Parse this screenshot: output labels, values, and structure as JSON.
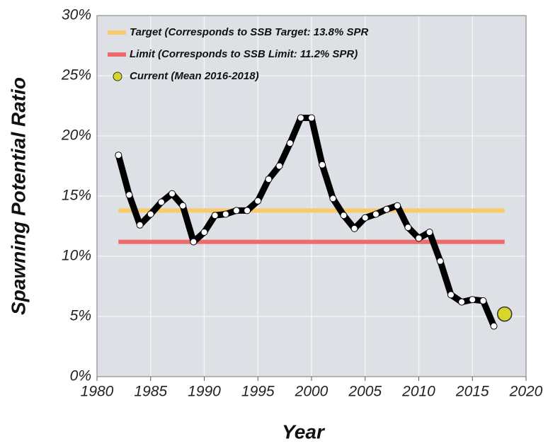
{
  "chart_data": {
    "type": "line",
    "x_label": "Year",
    "y_label": "Spawning Potential Ratio",
    "xlim": [
      1980,
      2020
    ],
    "xticks": [
      1980,
      1985,
      1990,
      1995,
      2000,
      2005,
      2010,
      2015,
      2020
    ],
    "ylim": [
      0,
      30
    ],
    "yticks": [
      {
        "value": 0,
        "label": "0%"
      },
      {
        "value": 5,
        "label": "5%"
      },
      {
        "value": 10,
        "label": "10%"
      },
      {
        "value": 15,
        "label": "15%"
      },
      {
        "value": 20,
        "label": "20%"
      },
      {
        "value": 25,
        "label": "25%"
      },
      {
        "value": 30,
        "label": "30%"
      }
    ],
    "grid": true,
    "legend": "upper left",
    "series": [
      {
        "name": "Target (Corresponds to SSB Target: 13.8% SPR",
        "color": "#f9c96a",
        "x": [
          1982,
          2018
        ],
        "values": [
          13.8,
          13.8
        ]
      },
      {
        "name": "Limit (Corresponds to SSB Limit: 11.2% SPR)",
        "color": "#ef6b6b",
        "x": [
          1982,
          2018
        ],
        "values": [
          11.2,
          11.2
        ]
      },
      {
        "color": "#000000",
        "markers": true,
        "x": [
          1982,
          1983,
          1984,
          1985,
          1986,
          1987,
          1988,
          1989,
          1990,
          1991,
          1992,
          1993,
          1994,
          1995,
          1996,
          1997,
          1998,
          1999,
          2000,
          2001,
          2002,
          2003,
          2004,
          2005,
          2006,
          2007,
          2008,
          2009,
          2010,
          2011,
          2012,
          2013,
          2014,
          2015,
          2016,
          2017
        ],
        "values": [
          18.4,
          15.1,
          12.6,
          13.5,
          14.5,
          15.2,
          14.2,
          11.2,
          12.0,
          13.4,
          13.5,
          13.8,
          13.8,
          14.6,
          16.4,
          17.5,
          19.4,
          21.5,
          21.5,
          17.6,
          14.8,
          13.4,
          12.3,
          13.2,
          13.5,
          13.9,
          14.2,
          12.4,
          11.5,
          12.0,
          9.6,
          6.8,
          6.2,
          6.4,
          6.3,
          4.2
        ]
      },
      {
        "name": "Current (Mean 2016-2018)",
        "color": "#d9d62a",
        "x": [
          2018
        ],
        "values": [
          5.2
        ]
      }
    ]
  }
}
